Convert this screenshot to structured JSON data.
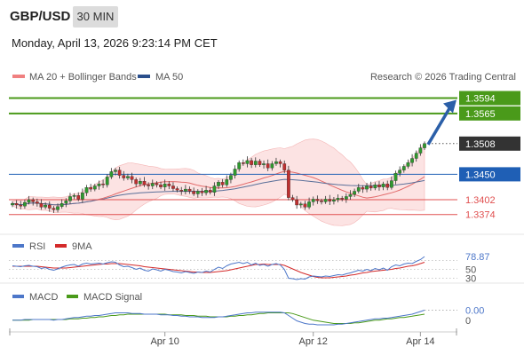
{
  "header": {
    "symbol": "GBP/USD",
    "timeframe": "30 MIN",
    "datetime": "Monday, April 13, 2026 9:23:14 PM CET"
  },
  "attribution": "Research © 2026 Trading Central",
  "colors": {
    "green": "#4a9a1a",
    "blue": "#1f5fb5",
    "red": "#e05050",
    "candle_up": "#2e9a2e",
    "candle_down": "#c03030",
    "band_fill": "#fbd9d9",
    "arrow": "#2b5fa8",
    "current": "#333333"
  },
  "chart_data": [
    {
      "type": "candlestick",
      "title": "",
      "legend": [
        {
          "name": "MA 20 + Bollinger Bands",
          "color": "#f08080"
        },
        {
          "name": "MA 50",
          "color": "#2b4f8c"
        }
      ],
      "x_ticks": [
        "Apr 10",
        "Apr 12",
        "Apr 14"
      ],
      "ylim": [
        1.334,
        1.3615
      ],
      "levels": [
        {
          "value": 1.3594,
          "label": "1.3594",
          "kind": "resistance"
        },
        {
          "value": 1.3565,
          "label": "1.3565",
          "kind": "resistance"
        },
        {
          "value": 1.3508,
          "label": "1.3508",
          "kind": "current"
        },
        {
          "value": 1.345,
          "label": "1.3450",
          "kind": "pivot"
        },
        {
          "value": 1.3402,
          "label": "1.3402",
          "kind": "support"
        },
        {
          "value": 1.3374,
          "label": "1.3374",
          "kind": "support"
        }
      ],
      "closes": [
        1.3395,
        1.3392,
        1.339,
        1.3397,
        1.3402,
        1.3398,
        1.3395,
        1.3388,
        1.3392,
        1.3386,
        1.3383,
        1.3389,
        1.3395,
        1.34,
        1.3408,
        1.341,
        1.3403,
        1.3415,
        1.3425,
        1.3422,
        1.3428,
        1.3432,
        1.343,
        1.3445,
        1.3455,
        1.3458,
        1.3448,
        1.3443,
        1.3446,
        1.344,
        1.3432,
        1.3437,
        1.343,
        1.3428,
        1.3433,
        1.343,
        1.3426,
        1.3432,
        1.3428,
        1.3423,
        1.342,
        1.3418,
        1.3422,
        1.3418,
        1.3413,
        1.3418,
        1.3415,
        1.342,
        1.3416,
        1.3428,
        1.3435,
        1.343,
        1.344,
        1.3448,
        1.346,
        1.3472,
        1.347,
        1.3476,
        1.3468,
        1.3475,
        1.3468,
        1.347,
        1.3462,
        1.347,
        1.3474,
        1.347,
        1.3458,
        1.3406,
        1.3402,
        1.3392,
        1.3394,
        1.3388,
        1.3398,
        1.3403,
        1.34,
        1.3398,
        1.3403,
        1.3399,
        1.3402,
        1.3405,
        1.3403,
        1.3408,
        1.3412,
        1.3418,
        1.3425,
        1.3422,
        1.3428,
        1.3424,
        1.343,
        1.3426,
        1.3432,
        1.3425,
        1.3438,
        1.3452,
        1.3458,
        1.3465,
        1.3472,
        1.348,
        1.349,
        1.35,
        1.3508
      ]
    },
    {
      "type": "line",
      "legend": [
        {
          "name": "RSI",
          "color": "#4d77c9"
        },
        {
          "name": "9MA",
          "color": "#d42a2a"
        }
      ],
      "ylim": [
        25,
        85
      ],
      "reference_levels": [
        70,
        50,
        30
      ],
      "ticks": [
        "50",
        "30"
      ],
      "last_value": "78.87",
      "rsi": [
        58,
        57,
        56,
        58,
        59,
        57,
        56,
        52,
        54,
        50,
        48,
        51,
        55,
        58,
        60,
        61,
        57,
        62,
        64,
        62,
        63,
        64,
        62,
        65,
        67,
        66,
        60,
        56,
        57,
        54,
        50,
        53,
        48,
        46,
        51,
        49,
        46,
        50,
        48,
        45,
        44,
        42,
        45,
        43,
        41,
        44,
        43,
        46,
        44,
        50,
        55,
        52,
        58,
        62,
        64,
        66,
        63,
        66,
        60,
        64,
        59,
        61,
        57,
        61,
        63,
        60,
        50,
        30,
        29,
        27,
        29,
        28,
        33,
        35,
        34,
        33,
        35,
        34,
        36,
        38,
        37,
        40,
        42,
        45,
        48,
        46,
        50,
        47,
        52,
        49,
        53,
        48,
        56,
        60,
        58,
        62,
        64,
        63,
        68,
        72,
        78.87
      ],
      "ma9": [
        57,
        57,
        57,
        57,
        57,
        57,
        57,
        56,
        55,
        54,
        53,
        53,
        53,
        53,
        54,
        55,
        56,
        57,
        58,
        59,
        60,
        61,
        62,
        62,
        63,
        63,
        63,
        62,
        61,
        60,
        59,
        58,
        56,
        55,
        54,
        53,
        52,
        51,
        50,
        49,
        48,
        47,
        46,
        45,
        44,
        44,
        43,
        43,
        43,
        44,
        45,
        46,
        47,
        49,
        51,
        53,
        55,
        57,
        59,
        61,
        61,
        62,
        61,
        61,
        61,
        61,
        59,
        55,
        51,
        47,
        43,
        40,
        37,
        34,
        32,
        31,
        31,
        31,
        32,
        33,
        34,
        35,
        37,
        38,
        40,
        42,
        43,
        45,
        46,
        47,
        48,
        49,
        50,
        52,
        53,
        55,
        57,
        58,
        60,
        63,
        66
      ]
    },
    {
      "type": "line",
      "legend": [
        {
          "name": "MACD",
          "color": "#4d77c9"
        },
        {
          "name": "MACD Signal",
          "color": "#4a9a1a"
        }
      ],
      "ylim": [
        -0.0015,
        0.0025
      ],
      "ticks": [
        "0"
      ],
      "last_value": "0.00",
      "macd": [
        0.0,
        0.0,
        0.0,
        0.0001,
        0.0001,
        0.0001,
        0.0001,
        0.0001,
        0.0001,
        0.0001,
        0.0,
        0.0001,
        0.0001,
        0.0002,
        0.0003,
        0.0004,
        0.0004,
        0.0005,
        0.0006,
        0.0006,
        0.0007,
        0.0007,
        0.0008,
        0.0009,
        0.001,
        0.0011,
        0.0011,
        0.0011,
        0.0011,
        0.001,
        0.001,
        0.001,
        0.0009,
        0.0009,
        0.0009,
        0.0009,
        0.0008,
        0.0008,
        0.0008,
        0.0007,
        0.0007,
        0.0006,
        0.0006,
        0.0005,
        0.0005,
        0.0005,
        0.0004,
        0.0004,
        0.0004,
        0.0004,
        0.0005,
        0.0005,
        0.0006,
        0.0007,
        0.0008,
        0.0009,
        0.001,
        0.0011,
        0.0011,
        0.0012,
        0.0012,
        0.0012,
        0.0012,
        0.0012,
        0.0012,
        0.0012,
        0.0011,
        0.0007,
        0.0003,
        -0.0001,
        -0.0003,
        -0.0005,
        -0.0006,
        -0.0006,
        -0.0007,
        -0.0007,
        -0.0007,
        -0.0007,
        -0.0007,
        -0.0006,
        -0.0006,
        -0.0005,
        -0.0004,
        -0.0003,
        -0.0002,
        -0.0001,
        0.0,
        0.0001,
        0.0002,
        0.0002,
        0.0003,
        0.0003,
        0.0004,
        0.0005,
        0.0006,
        0.0007,
        0.0008,
        0.0009,
        0.0011,
        0.0013,
        0.0015
      ],
      "signal": [
        0.0,
        0.0,
        0.0,
        0.0,
        0.0,
        0.0001,
        0.0001,
        0.0001,
        0.0001,
        0.0001,
        0.0001,
        0.0001,
        0.0001,
        0.0001,
        0.0002,
        0.0002,
        0.0002,
        0.0003,
        0.0003,
        0.0004,
        0.0004,
        0.0005,
        0.0005,
        0.0006,
        0.0007,
        0.0007,
        0.0008,
        0.0008,
        0.0009,
        0.0009,
        0.0009,
        0.0009,
        0.0009,
        0.0009,
        0.0009,
        0.0009,
        0.0009,
        0.0009,
        0.0008,
        0.0008,
        0.0008,
        0.0008,
        0.0007,
        0.0007,
        0.0007,
        0.0006,
        0.0006,
        0.0006,
        0.0005,
        0.0005,
        0.0005,
        0.0005,
        0.0005,
        0.0006,
        0.0006,
        0.0007,
        0.0007,
        0.0008,
        0.0008,
        0.0009,
        0.001,
        0.001,
        0.0011,
        0.0011,
        0.0011,
        0.0011,
        0.0011,
        0.0011,
        0.001,
        0.0008,
        0.0006,
        0.0004,
        0.0002,
        0.0,
        -0.0001,
        -0.0002,
        -0.0003,
        -0.0004,
        -0.0005,
        -0.0005,
        -0.0005,
        -0.0005,
        -0.0005,
        -0.0004,
        -0.0004,
        -0.0003,
        -0.0002,
        -0.0001,
        0.0,
        0.0,
        0.0001,
        0.0002,
        0.0002,
        0.0003,
        0.0004,
        0.0004,
        0.0005,
        0.0006,
        0.0007,
        0.0008,
        0.0009
      ]
    }
  ]
}
